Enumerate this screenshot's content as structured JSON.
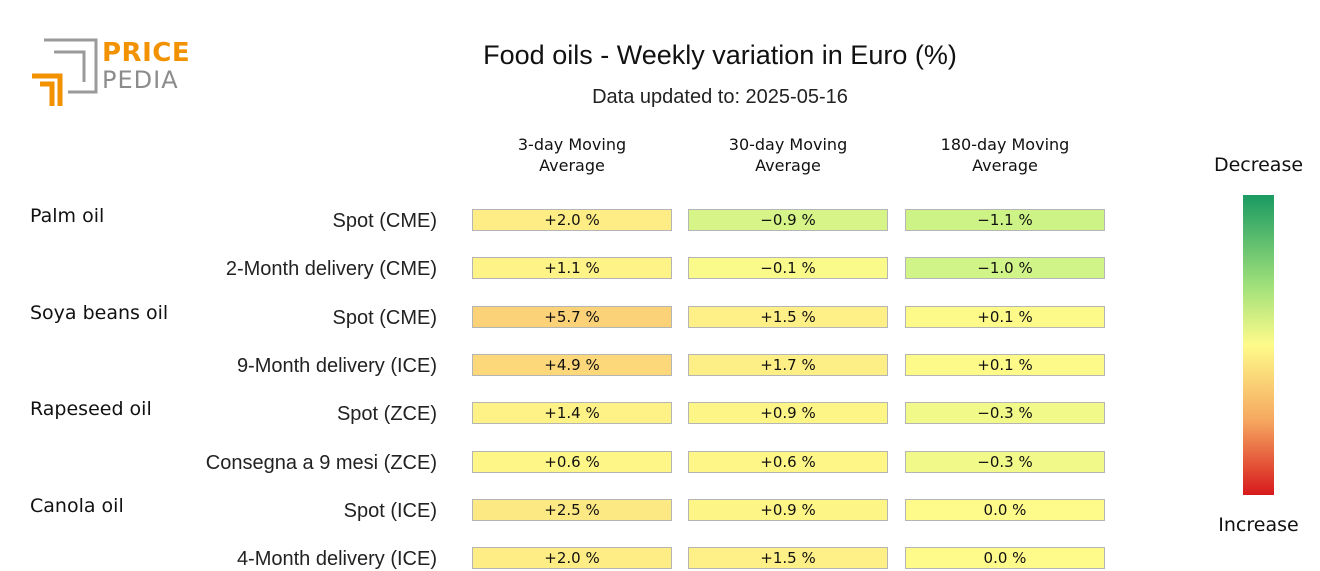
{
  "logo": {
    "line1": "PRICE",
    "line2": "PEDIA"
  },
  "title": "Food oils - Weekly variation in Euro (%)",
  "subtitle": "Data updated to: 2025-05-16",
  "legend": {
    "top": "Decrease",
    "bottom": "Increase"
  },
  "colors": {
    "accent": "#f39200",
    "logo_grey": "#8c8c8c",
    "cell_border": "#b5b5b5"
  },
  "chart_data": {
    "type": "heatmap",
    "title": "Food oils - Weekly variation in Euro (%)",
    "subtitle": "Data updated to: 2025-05-16",
    "unit": "%",
    "columns": [
      "3-day Moving Average",
      "30-day Moving Average",
      "180-day Moving Average"
    ],
    "column_lines": [
      [
        "3-day Moving",
        "Average"
      ],
      [
        "30-day Moving",
        "Average"
      ],
      [
        "180-day Moving",
        "Average"
      ]
    ],
    "groups": [
      {
        "name": "Palm oil",
        "rows": [
          {
            "label": "Spot (CME)",
            "values": [
              2.0,
              -0.9,
              -1.1
            ],
            "texts": [
              "+2.0 %",
              "−0.9 %",
              "−1.1 %"
            ]
          },
          {
            "label": "2-Month delivery (CME)",
            "values": [
              1.1,
              -0.1,
              -1.0
            ],
            "texts": [
              "+1.1 %",
              "−0.1 %",
              "−1.0 %"
            ]
          }
        ]
      },
      {
        "name": "Soya beans oil",
        "rows": [
          {
            "label": "Spot (CME)",
            "values": [
              5.7,
              1.5,
              0.1
            ],
            "texts": [
              "+5.7 %",
              "+1.5 %",
              "+0.1 %"
            ]
          },
          {
            "label": "9-Month delivery (ICE)",
            "values": [
              4.9,
              1.7,
              0.1
            ],
            "texts": [
              "+4.9 %",
              "+1.7 %",
              "+0.1 %"
            ]
          }
        ]
      },
      {
        "name": "Rapeseed oil",
        "rows": [
          {
            "label": "Spot (ZCE)",
            "values": [
              1.4,
              0.9,
              -0.3
            ],
            "texts": [
              "+1.4 %",
              "+0.9 %",
              "−0.3 %"
            ]
          },
          {
            "label": "Consegna a 9 mesi (ZCE)",
            "values": [
              0.6,
              0.6,
              -0.3
            ],
            "texts": [
              "+0.6 %",
              "+0.6 %",
              "−0.3 %"
            ]
          }
        ]
      },
      {
        "name": "Canola oil",
        "rows": [
          {
            "label": "Spot (ICE)",
            "values": [
              2.5,
              0.9,
              0.0
            ],
            "texts": [
              "+2.5 %",
              "+0.9 %",
              "0.0 %"
            ]
          },
          {
            "label": "4-Month delivery (ICE)",
            "values": [
              2.0,
              1.5,
              0.0
            ],
            "texts": [
              "+2.0 %",
              "+1.5 %",
              "0.0 %"
            ]
          }
        ]
      }
    ]
  }
}
